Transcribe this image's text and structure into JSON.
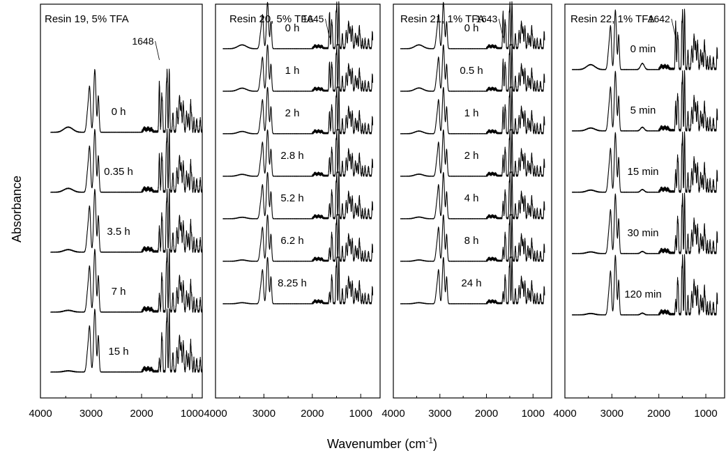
{
  "chart_data": [
    {
      "type": "line",
      "title": "Resin 19, 5% TFA",
      "xlim": [
        4000,
        800
      ],
      "xticks": [
        4000,
        3000,
        2000,
        1000
      ],
      "peak_annotation": "1648",
      "annotation_wavenumber": 1648,
      "series": [
        {
          "label": "0 h",
          "cho_fraction": 1.0
        },
        {
          "label": "0.35 h",
          "cho_fraction": 0.75
        },
        {
          "label": "3.5 h",
          "cho_fraction": 0.5
        },
        {
          "label": "7 h",
          "cho_fraction": 0.35
        },
        {
          "label": "15 h",
          "cho_fraction": 0.25
        }
      ]
    },
    {
      "type": "line",
      "title": "Resin 20, 5% TFA",
      "xlim": [
        4000,
        600
      ],
      "xticks": [
        4000,
        3000,
        2000,
        1000
      ],
      "peak_annotation": "1645",
      "annotation_wavenumber": 1645,
      "series": [
        {
          "label": "0 h",
          "cho_fraction": 1.0
        },
        {
          "label": "1 h",
          "cho_fraction": 0.8
        },
        {
          "label": "2 h",
          "cho_fraction": 0.6
        },
        {
          "label": "2.8 h",
          "cho_fraction": 0.5
        },
        {
          "label": "5.2 h",
          "cho_fraction": 0.4
        },
        {
          "label": "6.2 h",
          "cho_fraction": 0.35
        },
        {
          "label": "8.25 h",
          "cho_fraction": 0.3
        }
      ]
    },
    {
      "type": "line",
      "title": "Resin 21, 1% TFA",
      "xlim": [
        4000,
        600
      ],
      "xticks": [
        4000,
        3000,
        2000,
        1000
      ],
      "peak_annotation": "1643",
      "annotation_wavenumber": 1643,
      "series": [
        {
          "label": "0 h",
          "cho_fraction": 1.0
        },
        {
          "label": "0.5 h",
          "cho_fraction": 0.85
        },
        {
          "label": "1 h",
          "cho_fraction": 0.7
        },
        {
          "label": "2 h",
          "cho_fraction": 0.55
        },
        {
          "label": "4 h",
          "cho_fraction": 0.45
        },
        {
          "label": "8 h",
          "cho_fraction": 0.35
        },
        {
          "label": "24 h",
          "cho_fraction": 0.3
        }
      ]
    },
    {
      "type": "line",
      "title": "Resin 22, 1% TFA",
      "xlim": [
        4000,
        600
      ],
      "xticks": [
        4000,
        3000,
        2000,
        1000
      ],
      "peak_annotation": "1642",
      "annotation_wavenumber": 1642,
      "series": [
        {
          "label": "0 min",
          "cho_fraction": 1.0
        },
        {
          "label": "5 min",
          "cho_fraction": 0.6
        },
        {
          "label": "15 min",
          "cho_fraction": 0.45
        },
        {
          "label": "30 min",
          "cho_fraction": 0.35
        },
        {
          "label": "120 min",
          "cho_fraction": 0.3
        }
      ]
    }
  ],
  "axes": {
    "ylabel": "Absorbance",
    "xlabel": "Wavenumber (cm",
    "xlabel_sup": "-1",
    "xlabel_end": ")"
  },
  "colors": {
    "line": "#000000",
    "background": "#ffffff"
  }
}
